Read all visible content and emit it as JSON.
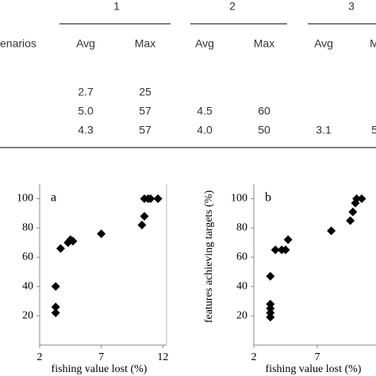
{
  "table": {
    "group_headers": [
      "1",
      "2",
      "3"
    ],
    "columns": [
      "enarios",
      "Avg",
      "Max",
      "Avg",
      "Max",
      "Avg",
      "M"
    ],
    "rows": [
      [
        "2.7",
        "25"
      ],
      [
        "5.0",
        "57",
        "4.5",
        "60"
      ],
      [
        "4.3",
        "57",
        "4.0",
        "50",
        "3.1",
        "5"
      ]
    ]
  },
  "chart_data": [
    {
      "type": "scatter",
      "panel_label": "a",
      "x_label": "fishing value lost (%)",
      "color": "#000000",
      "x": [
        3.3,
        3.3,
        3.3,
        3.7,
        4.3,
        4.5,
        4.7,
        7.0,
        10.3,
        10.5,
        10.5,
        10.8,
        11.0,
        11.6
      ],
      "values": [
        22,
        26,
        40,
        66,
        70,
        72,
        71,
        76,
        82,
        88,
        100,
        100,
        100,
        100
      ],
      "xlim": [
        2,
        12.3
      ],
      "xticks": [
        2,
        7,
        12
      ],
      "ylim": [
        0,
        110
      ],
      "yticks": [
        20,
        40,
        60,
        80,
        100
      ]
    },
    {
      "type": "scatter",
      "panel_label": "b",
      "x_label": "fishing value lost (%)",
      "y_label": "features achieving targets (%)",
      "color": "#000000",
      "x": [
        3.3,
        3.3,
        3.3,
        3.3,
        3.3,
        3.7,
        4.2,
        4.5,
        4.7,
        8.1,
        9.6,
        9.8,
        10.0,
        10.1,
        10.5
      ],
      "values": [
        19,
        22,
        25,
        28,
        47,
        65,
        65,
        65,
        72,
        78,
        85,
        91,
        97,
        100,
        100
      ],
      "xlim": [
        2,
        12
      ],
      "xticks": [
        2,
        7,
        12
      ],
      "ylim": [
        0,
        110
      ],
      "yticks": [
        20,
        40,
        60,
        80,
        100
      ]
    }
  ]
}
